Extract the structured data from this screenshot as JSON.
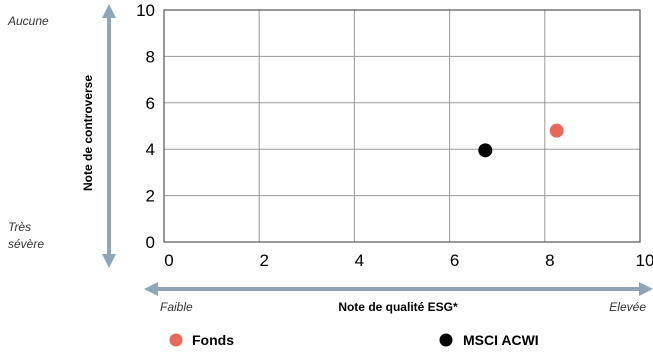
{
  "chart_data": {
    "type": "scatter",
    "xlabel": "Note de qualité ESG*",
    "ylabel": "Note de controverse",
    "xlim": [
      0,
      10
    ],
    "ylim": [
      0,
      10
    ],
    "x_ticks": [
      "0",
      "2",
      "4",
      "6",
      "8",
      "10"
    ],
    "y_ticks": [
      "0",
      "2",
      "4",
      "6",
      "8",
      "10"
    ],
    "grid": true,
    "x_axis_ends": {
      "low": "Faible",
      "high": "Elevée"
    },
    "y_axis_ends": {
      "low": "Très sévère",
      "high": "Aucune"
    },
    "legend_position": "bottom",
    "series": [
      {
        "name": "Fonds",
        "color": "#e8685a",
        "points": [
          {
            "x": 8.25,
            "y": 4.8
          }
        ]
      },
      {
        "name": "MSCI ACWI",
        "color": "#000000",
        "points": [
          {
            "x": 6.75,
            "y": 3.95
          }
        ]
      }
    ]
  }
}
